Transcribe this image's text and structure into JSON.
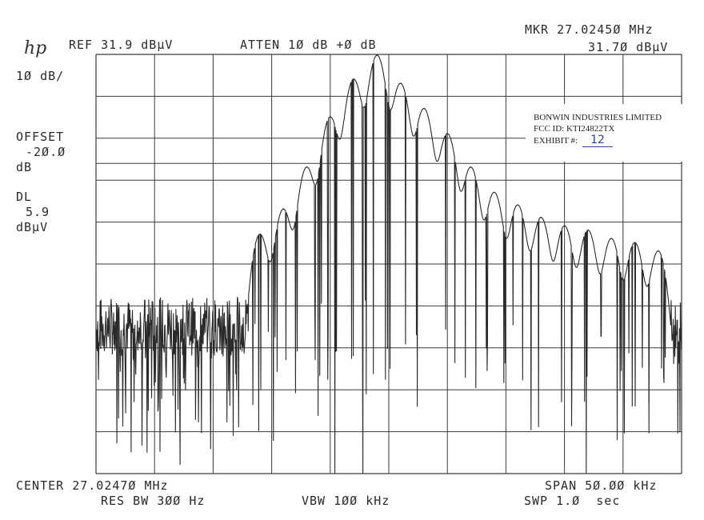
{
  "header": {
    "ref": "REF 31.9 dBµV",
    "atten": "ATTEN 1Ø dB +Ø dB",
    "marker_freq": "MKR 27.0245Ø MHz",
    "marker_level": "31.7Ø dBµV"
  },
  "logo_text": "hp",
  "left_panel": {
    "scale": "1Ø dB/",
    "offset_label": "OFFSET",
    "offset_value": "-2Ø.Ø",
    "offset_unit": "dB",
    "dl_label": "DL",
    "dl_value": "5.9",
    "dl_unit": "dBµV"
  },
  "footer": {
    "center": "CENTER 27.0247Ø MHz",
    "span": "SPAN 5Ø.ØØ kHz",
    "res_bw": "RES BW 3ØØ Hz",
    "vbw": "VBW 1ØØ kHz",
    "swp": "SWP 1.Ø  sec"
  },
  "stamp": {
    "company": "BONWIN INDUSTRIES LIMITED",
    "fcc": "FCC ID:  KTI24822TX",
    "exhibit_label": "EXHIBIT #:",
    "exhibit_value": "12"
  },
  "colors": {
    "trace": "#2a2a2a",
    "grid": "#3a3a3a",
    "stamp_ink": "#2b3f9e"
  },
  "chart_data": {
    "type": "line",
    "title": "",
    "xlabel": "CENTER 27.0247Ø MHz",
    "ylabel": "",
    "xlim": [
      -25,
      25
    ],
    "x_unit": "kHz offset from center",
    "ylim": [
      -68.1,
      31.9
    ],
    "y_unit": "dBµV",
    "grid": true,
    "series": [
      {
        "kind": "peaks",
        "x": [
          -11.0,
          -9.0,
          -7.0,
          -5.0,
          -3.0,
          -1.0,
          1.0,
          3.0,
          5.0,
          7.0,
          9.0,
          11.0,
          13.0,
          15.0,
          17.0,
          19.0,
          21.0,
          23.0
        ],
        "values": [
          -11.0,
          -5.0,
          5.0,
          17.0,
          26.0,
          31.7,
          25.0,
          19.0,
          13.0,
          5.0,
          -1.0,
          -4.0,
          -7.0,
          -9.0,
          -10.0,
          -12.0,
          -13.0,
          -15.0
        ]
      }
    ],
    "noise_floor": -33.0
  }
}
